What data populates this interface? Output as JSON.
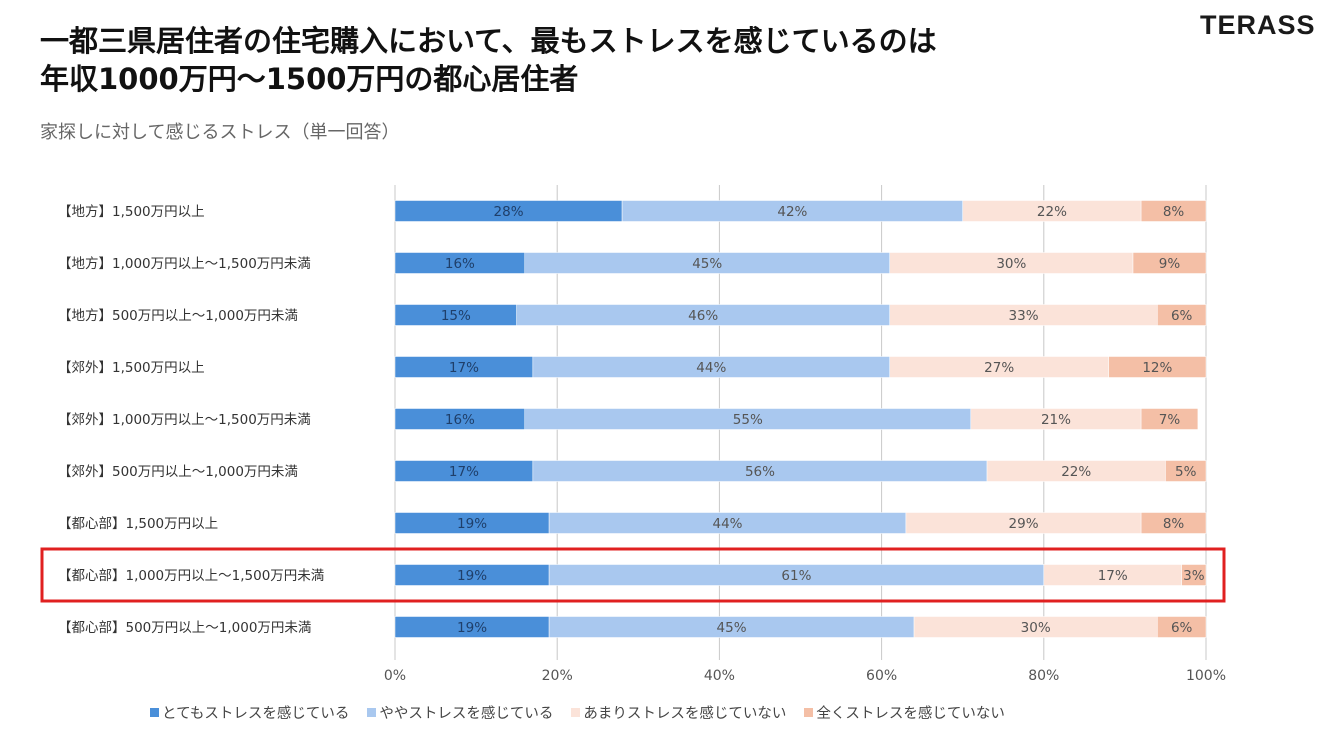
{
  "header": {
    "title_line1": "一都三県居住者の住宅購入において、最もストレスを感じているのは",
    "title_line2": "年収1000万円〜1500万円の都心居住者",
    "subtitle": "家探しに対して感じるストレス（単一回答）",
    "logo": "TERASS"
  },
  "chart_data": {
    "type": "bar",
    "orientation": "horizontal",
    "stacked": true,
    "categories": [
      "【地方】1,500万円以上",
      "【地方】1,000万円以上～1,500万円未満",
      "【地方】500万円以上～1,000万円未満",
      "【郊外】1,500万円以上",
      "【郊外】1,000万円以上～1,500万円未満",
      "【郊外】500万円以上～1,000万円未満",
      "【都心部】1,500万円以上",
      "【都心部】1,000万円以上～1,500万円未満",
      "【都心部】500万円以上～1,000万円未満"
    ],
    "series": [
      {
        "name": "とてもストレスを感じている",
        "color": "#4a8fd9",
        "values": [
          28,
          16,
          15,
          17,
          16,
          17,
          19,
          19,
          19
        ]
      },
      {
        "name": "ややストレスを感じている",
        "color": "#a9c8ef",
        "values": [
          42,
          45,
          46,
          44,
          55,
          56,
          44,
          61,
          45
        ]
      },
      {
        "name": "あまりストレスを感じていない",
        "color": "#fbe3d9",
        "values": [
          22,
          30,
          33,
          27,
          21,
          22,
          29,
          17,
          30
        ]
      },
      {
        "name": "全くストレスを感じていない",
        "color": "#f4bfa6",
        "values": [
          8,
          9,
          6,
          12,
          7,
          5,
          8,
          3,
          6
        ]
      }
    ],
    "xlim": [
      0,
      100
    ],
    "xticks": [
      "0%",
      "20%",
      "40%",
      "60%",
      "80%",
      "100%"
    ],
    "legend": "bottom",
    "grid": true,
    "highlight_index": 7,
    "highlight_color": "#e02020"
  }
}
